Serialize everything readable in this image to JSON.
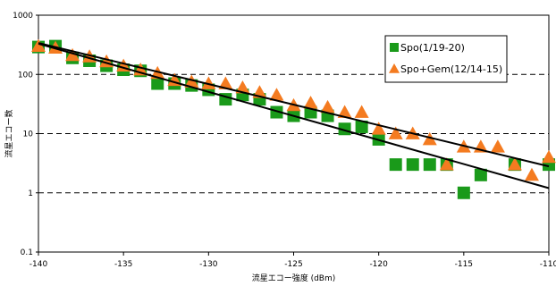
{
  "chart_data": {
    "type": "scatter",
    "title": "",
    "xlabel": "流星エコー強度 (dBm)",
    "ylabel": "流星エコー数",
    "xlim": [
      -140,
      -110
    ],
    "ylim": [
      0.1,
      1000
    ],
    "yscale": "log",
    "x_ticks": [
      "-140",
      "-135",
      "-130",
      "-125",
      "-120",
      "-115",
      "-110"
    ],
    "y_ticks": [
      "0.1",
      "1",
      "10",
      "100",
      "1000"
    ],
    "grid": "horizontal dashed",
    "legend_position": "top-right",
    "series": [
      {
        "name": "Spo(1/19-20)",
        "marker": "square",
        "color": "#1a9a1a",
        "points": [
          [
            -140,
            290
          ],
          [
            -139,
            300
          ],
          [
            -138,
            190
          ],
          [
            -137,
            170
          ],
          [
            -136,
            140
          ],
          [
            -135,
            120
          ],
          [
            -134,
            115
          ],
          [
            -133,
            70
          ],
          [
            -132,
            70
          ],
          [
            -131,
            65
          ],
          [
            -130,
            55
          ],
          [
            -129,
            38
          ],
          [
            -128,
            45
          ],
          [
            -127,
            38
          ],
          [
            -126,
            23
          ],
          [
            -125,
            20
          ],
          [
            -124,
            23
          ],
          [
            -123,
            20
          ],
          [
            -122,
            12
          ],
          [
            -121,
            13
          ],
          [
            -120,
            8
          ],
          [
            -119,
            3
          ],
          [
            -118,
            3
          ],
          [
            -117,
            3
          ],
          [
            -116,
            3
          ],
          [
            -115,
            1
          ],
          [
            -114,
            2
          ],
          [
            -112,
            3
          ],
          [
            -110,
            3
          ]
        ]
      },
      {
        "name": "Spo+Gem(12/14-15)",
        "marker": "triangle",
        "color": "#f47b20",
        "points": [
          [
            -140,
            300
          ],
          [
            -139,
            280
          ],
          [
            -138,
            210
          ],
          [
            -137,
            200
          ],
          [
            -136,
            165
          ],
          [
            -135,
            140
          ],
          [
            -134,
            120
          ],
          [
            -133,
            105
          ],
          [
            -132,
            80
          ],
          [
            -131,
            75
          ],
          [
            -130,
            70
          ],
          [
            -129,
            70
          ],
          [
            -128,
            60
          ],
          [
            -127,
            50
          ],
          [
            -126,
            45
          ],
          [
            -125,
            30
          ],
          [
            -124,
            33
          ],
          [
            -123,
            28
          ],
          [
            -122,
            23
          ],
          [
            -121,
            23
          ],
          [
            -120,
            12
          ],
          [
            -119,
            10
          ],
          [
            -118,
            10
          ],
          [
            -117,
            8
          ],
          [
            -116,
            3
          ],
          [
            -115,
            6
          ],
          [
            -114,
            6
          ],
          [
            -113,
            6
          ],
          [
            -112,
            3
          ],
          [
            -111,
            2
          ],
          [
            -110,
            4
          ]
        ]
      }
    ],
    "fit_lines": [
      {
        "x": [
          -140,
          -110
        ],
        "y": [
          340,
          2.8
        ]
      },
      {
        "x": [
          -140,
          -110
        ],
        "y": [
          330,
          1.2
        ]
      }
    ]
  }
}
